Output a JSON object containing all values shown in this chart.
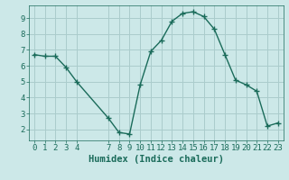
{
  "x": [
    0,
    1,
    2,
    3,
    4,
    7,
    8,
    9,
    10,
    11,
    12,
    13,
    14,
    15,
    16,
    17,
    18,
    19,
    20,
    21,
    22,
    23
  ],
  "y": [
    6.7,
    6.6,
    6.6,
    5.9,
    5.0,
    2.7,
    1.8,
    1.7,
    4.8,
    6.9,
    7.6,
    8.8,
    9.3,
    9.4,
    9.1,
    8.3,
    6.7,
    5.1,
    4.8,
    4.4,
    2.2,
    2.4
  ],
  "line_color": "#1a6b5a",
  "marker": "+",
  "bg_color": "#cce8e8",
  "grid_color": "#aacccc",
  "xlabel": "Humidex (Indice chaleur)",
  "xlim": [
    -0.5,
    23.5
  ],
  "ylim": [
    1.3,
    9.8
  ],
  "yticks": [
    2,
    3,
    4,
    5,
    6,
    7,
    8,
    9
  ],
  "xticks": [
    0,
    1,
    2,
    3,
    4,
    7,
    8,
    9,
    10,
    11,
    12,
    13,
    14,
    15,
    16,
    17,
    18,
    19,
    20,
    21,
    22,
    23
  ],
  "xtick_labels": [
    "0",
    "1",
    "2",
    "3",
    "4",
    "7",
    "8",
    "9",
    "10",
    "11",
    "12",
    "13",
    "14",
    "15",
    "16",
    "17",
    "18",
    "19",
    "20",
    "21",
    "22",
    "23"
  ],
  "font_size": 6.5,
  "xlabel_font_size": 7.5,
  "line_width": 1.0,
  "marker_size": 4
}
